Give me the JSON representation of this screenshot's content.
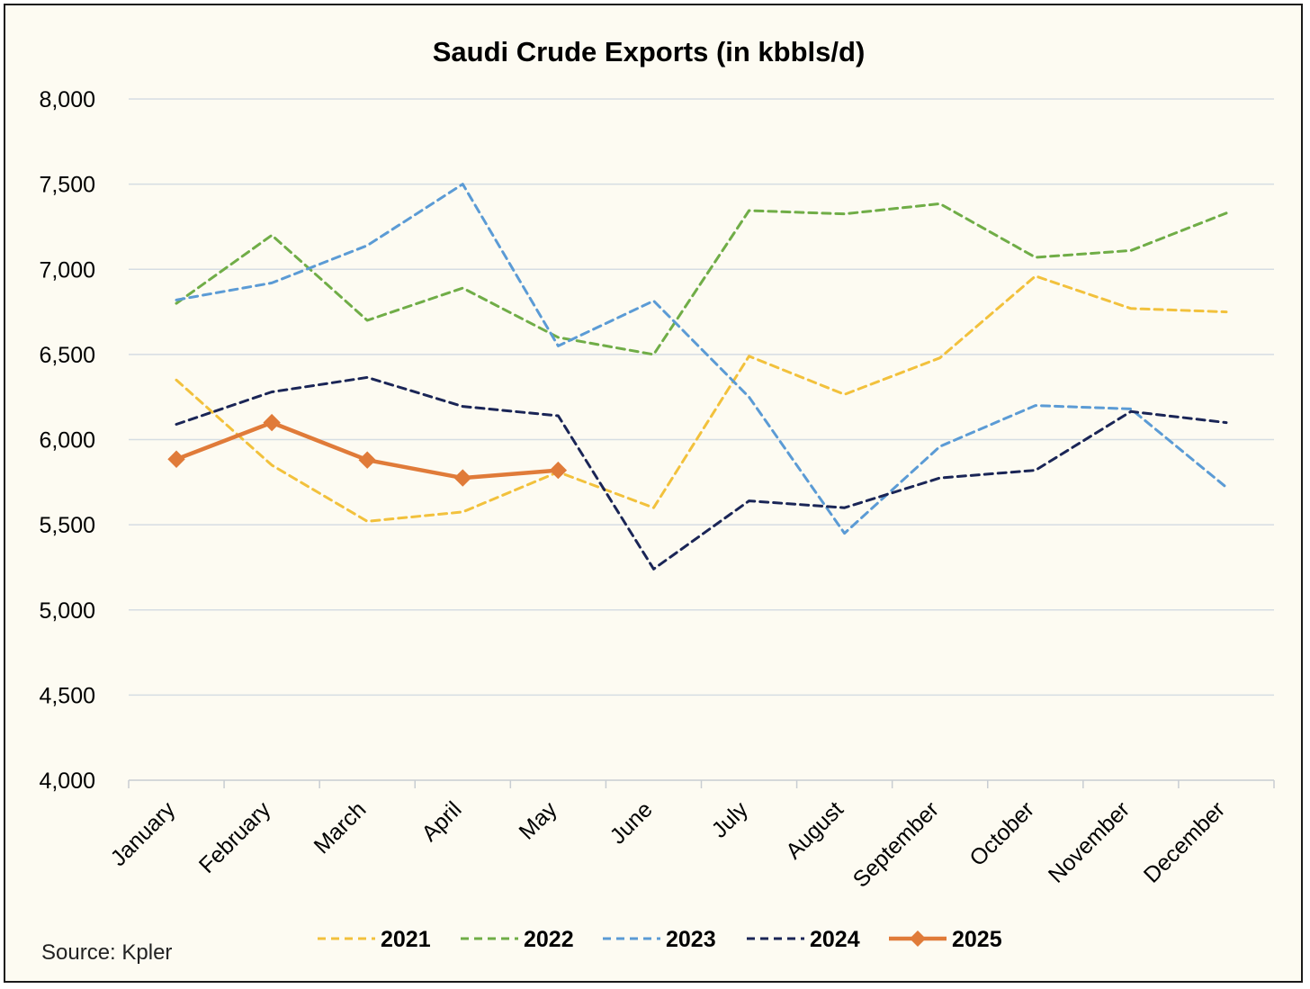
{
  "chart_data": {
    "type": "line",
    "title": "Saudi Crude Exports (in kbbls/d)",
    "source": "Source: Kpler",
    "xlabel": "",
    "ylabel": "",
    "ylim": [
      4000,
      8000
    ],
    "yticks": [
      4000,
      4500,
      5000,
      5500,
      6000,
      6500,
      7000,
      7500,
      8000
    ],
    "ytick_labels": [
      "4,000",
      "4,500",
      "5,000",
      "5,500",
      "6,000",
      "6,500",
      "7,000",
      "7,500",
      "8,000"
    ],
    "categories": [
      "January",
      "February",
      "March",
      "April",
      "May",
      "June",
      "July",
      "August",
      "September",
      "October",
      "November",
      "December"
    ],
    "grid": "horizontal",
    "legend_position": "bottom",
    "series": [
      {
        "name": "2021",
        "color": "#f2c13c",
        "dash": "dashed",
        "marker": "none",
        "values": [
          6350,
          5850,
          5520,
          5575,
          5810,
          5600,
          6490,
          6265,
          6480,
          6960,
          6770,
          6750
        ]
      },
      {
        "name": "2022",
        "color": "#70ad47",
        "dash": "dashed",
        "marker": "none",
        "values": [
          6800,
          7200,
          6700,
          6890,
          6600,
          6500,
          7345,
          7325,
          7385,
          7070,
          7110,
          7330
        ]
      },
      {
        "name": "2023",
        "color": "#5b9bd5",
        "dash": "dashed",
        "marker": "none",
        "values": [
          6820,
          6920,
          7140,
          7500,
          6550,
          6815,
          6250,
          5450,
          5960,
          6200,
          6180,
          5720
        ]
      },
      {
        "name": "2024",
        "color": "#1a2556",
        "dash": "dashed",
        "marker": "none",
        "values": [
          6090,
          6280,
          6365,
          6195,
          6140,
          5240,
          5640,
          5600,
          5775,
          5820,
          6165,
          6100
        ]
      },
      {
        "name": "2025",
        "color": "#e07b39",
        "dash": "solid",
        "marker": "diamond",
        "values": [
          5885,
          6100,
          5880,
          5775,
          5820,
          null,
          null,
          null,
          null,
          null,
          null,
          null
        ]
      }
    ]
  }
}
